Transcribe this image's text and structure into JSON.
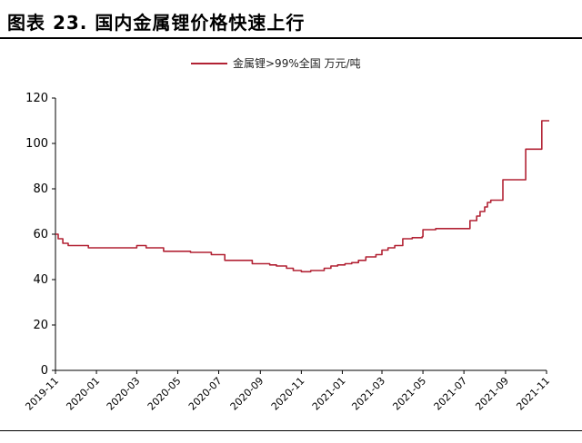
{
  "figure": {
    "title": "图表 23. 国内金属锂价格快速上行",
    "source": ""
  },
  "chart_data": {
    "type": "line",
    "title": "",
    "xlabel": "",
    "ylabel": "",
    "ylim": [
      0,
      120
    ],
    "yticks": [
      0,
      20,
      40,
      60,
      80,
      100,
      120
    ],
    "xlim": [
      "2019-11",
      "2021-11"
    ],
    "xticks": [
      "2019-11",
      "2020-01",
      "2020-03",
      "2020-05",
      "2020-07",
      "2020-09",
      "2020-11",
      "2021-01",
      "2021-03",
      "2021-05",
      "2021-07",
      "2021-09",
      "2021-11"
    ],
    "grid": false,
    "legend": "top-center",
    "colors": {
      "series": "#b22234",
      "axis": "#000000"
    },
    "series": [
      {
        "name": "金属锂>99%全国 万元/吨",
        "x": [
          "2019-11-01",
          "2019-11-05",
          "2019-11-12",
          "2019-11-20",
          "2019-12-10",
          "2019-12-20",
          "2020-01-15",
          "2020-02-10",
          "2020-03-01",
          "2020-03-15",
          "2020-04-10",
          "2020-05-01",
          "2020-05-20",
          "2020-06-05",
          "2020-06-20",
          "2020-07-10",
          "2020-08-01",
          "2020-08-20",
          "2020-09-15",
          "2020-09-25",
          "2020-10-10",
          "2020-10-20",
          "2020-11-01",
          "2020-11-15",
          "2020-11-25",
          "2020-12-05",
          "2020-12-15",
          "2020-12-25",
          "2021-01-05",
          "2021-01-15",
          "2021-01-25",
          "2021-02-05",
          "2021-02-20",
          "2021-03-01",
          "2021-03-10",
          "2021-03-20",
          "2021-04-01",
          "2021-04-15",
          "2021-04-30",
          "2021-05-01",
          "2021-05-20",
          "2021-06-10",
          "2021-07-01",
          "2021-07-10",
          "2021-07-20",
          "2021-07-25",
          "2021-08-01",
          "2021-08-05",
          "2021-08-10",
          "2021-08-15",
          "2021-08-20",
          "2021-08-28",
          "2021-09-01",
          "2021-09-15",
          "2021-09-28",
          "2021-10-01",
          "2021-10-10",
          "2021-10-20",
          "2021-10-25",
          "2021-11-01",
          "2021-11-05"
        ],
        "values": [
          60,
          58,
          56,
          55,
          55,
          54,
          54,
          54,
          55,
          54,
          52.5,
          52.5,
          52,
          52,
          51,
          48.5,
          48.5,
          47,
          46.5,
          46,
          45,
          44,
          43.5,
          44,
          44,
          45,
          46,
          46.5,
          47,
          47.5,
          48.5,
          50,
          51,
          53,
          54,
          55,
          58,
          58.5,
          59,
          62,
          62.5,
          62.5,
          62.5,
          66,
          68,
          70,
          72,
          74,
          75,
          75,
          75,
          84,
          84,
          84,
          84,
          97.5,
          97.5,
          97.5,
          110,
          110,
          110
        ]
      }
    ]
  }
}
